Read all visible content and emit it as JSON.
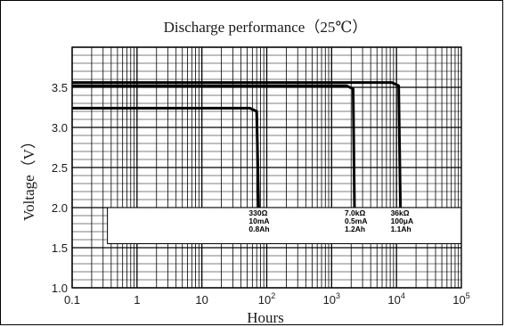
{
  "chart_data": {
    "type": "line",
    "title": "Discharge performance（25℃）",
    "xlabel": "Hours",
    "ylabel": "Voltage（V）",
    "x_scale": "log",
    "xlim": [
      0.1,
      100000
    ],
    "ylim": [
      1.0,
      4.0
    ],
    "grid": true,
    "x_ticks": [
      {
        "value": 0.1,
        "base": "0.1",
        "exp": ""
      },
      {
        "value": 1,
        "base": "1",
        "exp": ""
      },
      {
        "value": 10,
        "base": "10",
        "exp": ""
      },
      {
        "value": 100,
        "base": "10",
        "exp": "2"
      },
      {
        "value": 1000,
        "base": "10",
        "exp": "3"
      },
      {
        "value": 10000,
        "base": "10",
        "exp": "4"
      },
      {
        "value": 100000,
        "base": "10",
        "exp": "5"
      }
    ],
    "y_ticks": [
      {
        "value": 1.0,
        "label": "1.0"
      },
      {
        "value": 1.5,
        "label": "1.5"
      },
      {
        "value": 2.0,
        "label": "2.0"
      },
      {
        "value": 2.5,
        "label": "2.5"
      },
      {
        "value": 3.0,
        "label": "3.0"
      },
      {
        "value": 3.5,
        "label": "3.5"
      }
    ],
    "series": [
      {
        "labels": [
          "330Ω",
          "10mA",
          "0.8Ah"
        ],
        "points": [
          [
            0.1,
            3.24
          ],
          [
            55,
            3.24
          ],
          [
            70,
            3.2
          ],
          [
            75,
            2.0
          ]
        ]
      },
      {
        "labels": [
          "7.0kΩ",
          "0.5mA",
          "1.2Ah"
        ],
        "points": [
          [
            0.1,
            3.52
          ],
          [
            1700,
            3.52
          ],
          [
            2150,
            3.48
          ],
          [
            2250,
            2.0
          ]
        ]
      },
      {
        "labels": [
          "36kΩ",
          "100μA",
          "1.1Ah"
        ],
        "points": [
          [
            0.1,
            3.56
          ],
          [
            8500,
            3.56
          ],
          [
            10800,
            3.52
          ],
          [
            11500,
            2.0
          ]
        ]
      }
    ],
    "label_box": {
      "x0": 0.35,
      "x1": 100000,
      "y0": 1.55,
      "y1": 2.0
    }
  }
}
